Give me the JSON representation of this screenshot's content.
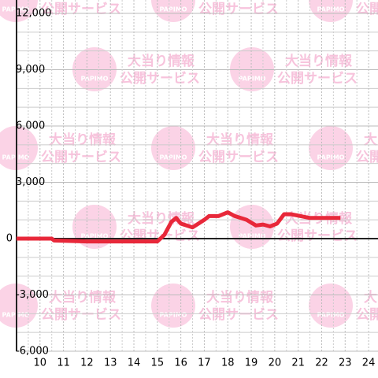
{
  "chart_data": {
    "type": "line",
    "x": [
      9.0,
      10.5,
      10.6,
      12.0,
      14.0,
      15.0,
      15.3,
      15.6,
      15.8,
      16.0,
      16.5,
      17.0,
      17.2,
      17.6,
      18.0,
      18.3,
      18.8,
      19.2,
      19.5,
      19.8,
      20.1,
      20.4,
      20.7,
      21.1,
      21.5,
      22.8
    ],
    "series": [
      {
        "color": "#e8283a",
        "values": [
          0,
          0,
          -100,
          -150,
          -150,
          -150,
          200,
          900,
          1100,
          800,
          600,
          1000,
          1200,
          1200,
          1400,
          1200,
          1000,
          700,
          750,
          650,
          800,
          1300,
          1300,
          1200,
          1100,
          1100
        ]
      }
    ],
    "xlim": [
      9.0,
      24.4
    ],
    "ylim": [
      -6000,
      12000
    ],
    "xticks": [
      10,
      11,
      12,
      13,
      14,
      15,
      16,
      17,
      18,
      19,
      20,
      21,
      22,
      23,
      24
    ],
    "yticks": [
      {
        "value": -6000,
        "label": "-6,000"
      },
      {
        "value": -3000,
        "label": "-3,000"
      },
      0,
      {
        "value": 3000,
        "label": "3,000"
      },
      {
        "value": 6000,
        "label": "6,000"
      },
      {
        "value": 9000,
        "label": "9,000"
      },
      {
        "value": 12000,
        "label": "12,000"
      }
    ],
    "grid": true,
    "watermark": {
      "lines": [
        "大当り情報",
        "公開サービス"
      ],
      "logo": "PAPIMO"
    }
  }
}
